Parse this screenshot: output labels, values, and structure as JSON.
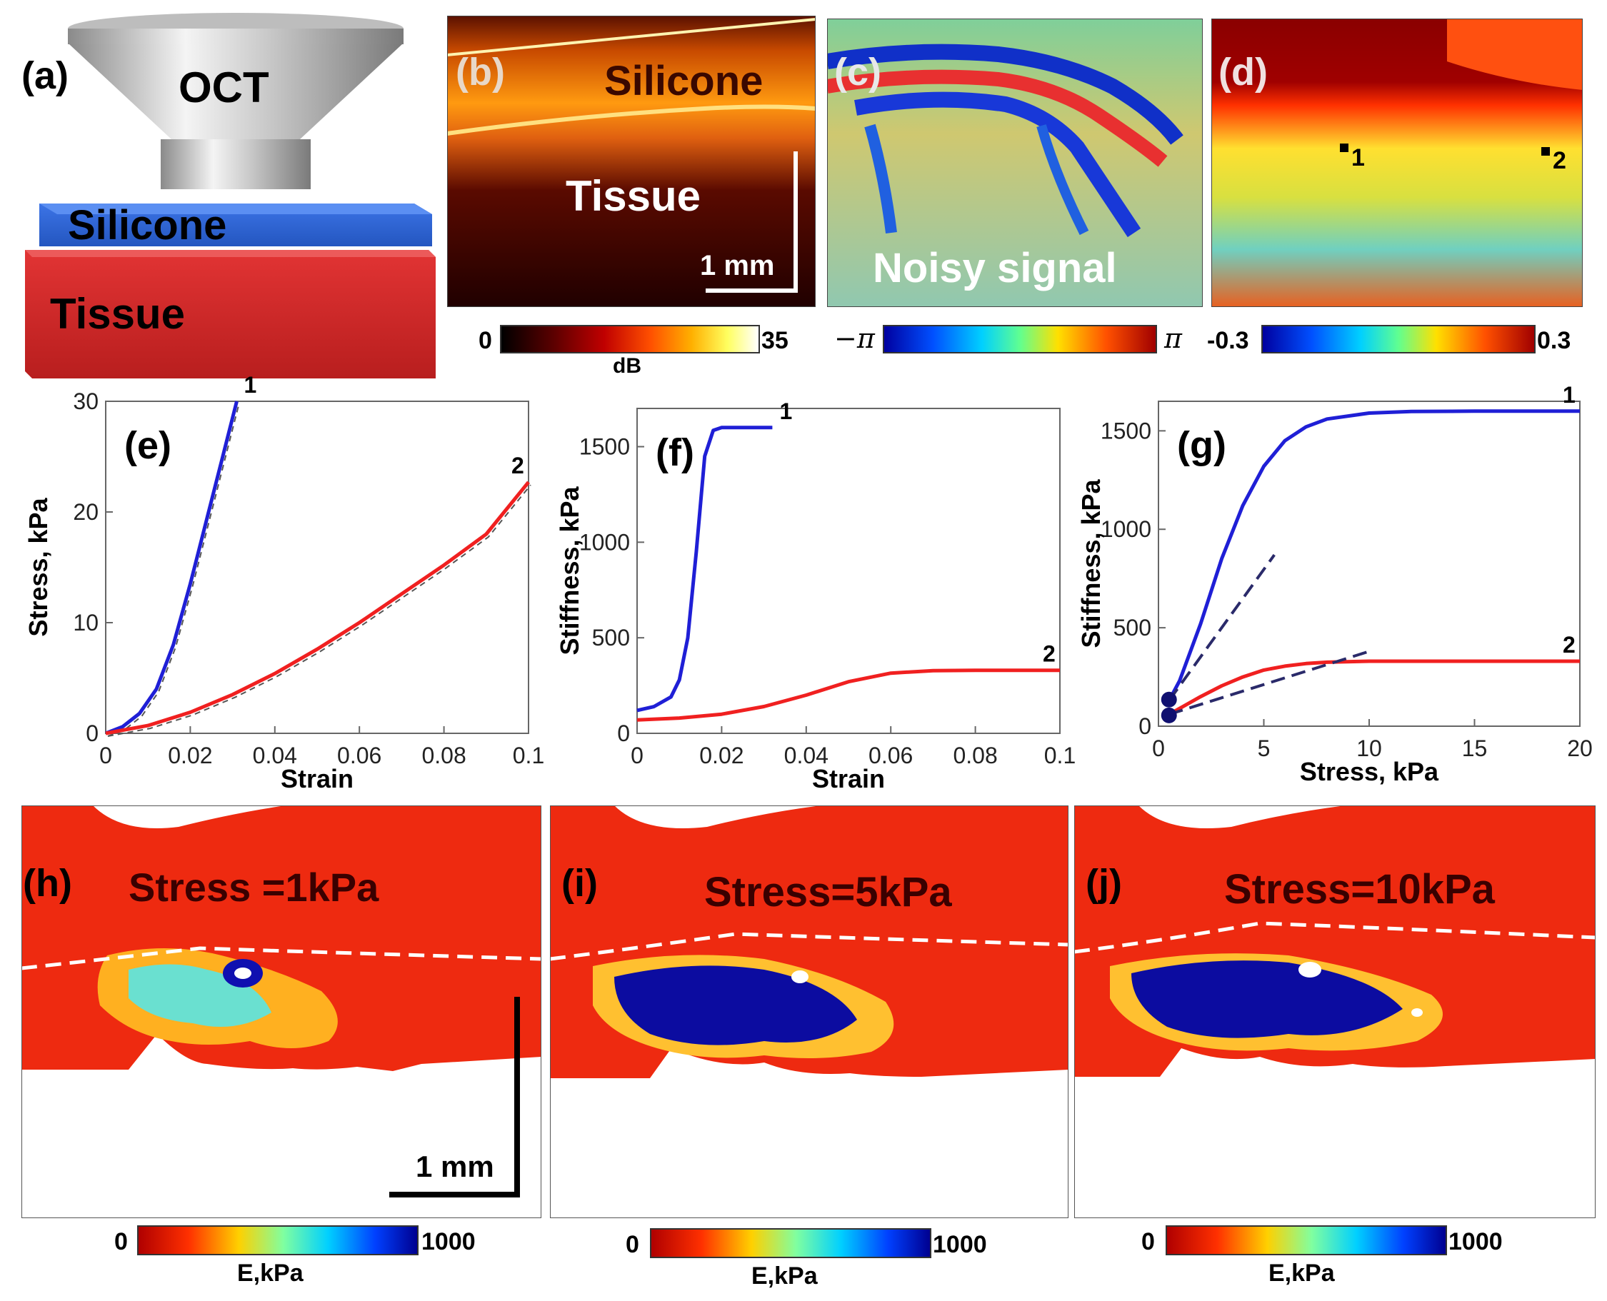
{
  "panels": {
    "a": {
      "letter": "(a)",
      "oct": "OCT",
      "silicone": "Silicone",
      "tissue": "Tissue"
    },
    "b": {
      "letter": "(b)",
      "silicone": "Silicone",
      "tissue": "Tissue",
      "scale": "1 mm",
      "colorbar": {
        "min": "0",
        "max": "35",
        "unit": "dB"
      }
    },
    "c": {
      "letter": "(c)",
      "text": "Noisy signal",
      "colorbar": {
        "min": "−π",
        "max": "π"
      }
    },
    "d": {
      "letter": "(d)",
      "point1": "1",
      "point2": "2",
      "colorbar": {
        "min": "-0.3",
        "max": "0.3"
      }
    },
    "h": {
      "letter": "(h)",
      "title": "Stress =1kPa",
      "scale": "1 mm",
      "colorbar": {
        "min": "0",
        "max": "1000",
        "unit": "E,kPa"
      }
    },
    "i": {
      "letter": "(i)",
      "title": "Stress=5kPa",
      "colorbar": {
        "min": "0",
        "max": "1000",
        "unit": "E,kPa"
      }
    },
    "j": {
      "letter": "(j)",
      "title": "Stress=10kPa",
      "colorbar": {
        "min": "0",
        "max": "1000",
        "unit": "E,kPa"
      }
    }
  },
  "colors": {
    "series1": "#1f1fd6",
    "series2": "#f02020",
    "fit": "#555555",
    "tangent": "#2a2a6a"
  },
  "chart_data": [
    {
      "id": "e",
      "letter": "(e)",
      "type": "line",
      "xlabel": "Strain",
      "ylabel": "Stress, kPa",
      "xlim": [
        0,
        0.1
      ],
      "ylim": [
        0,
        30
      ],
      "xticks": [
        "0",
        "0.02",
        "0.04",
        "0.06",
        "0.08",
        "0.1"
      ],
      "yticks": [
        "0",
        "10",
        "20",
        "30"
      ],
      "series": [
        {
          "label": "1",
          "color": "#1f1fd6",
          "x": [
            0,
            0.004,
            0.008,
            0.012,
            0.016,
            0.02,
            0.024,
            0.028,
            0.031
          ],
          "y": [
            0,
            0.6,
            1.8,
            4.0,
            8.0,
            13.5,
            19.5,
            25.5,
            30
          ]
        },
        {
          "label": "2",
          "color": "#f02020",
          "x": [
            0,
            0.01,
            0.02,
            0.03,
            0.04,
            0.05,
            0.06,
            0.07,
            0.08,
            0.09,
            0.1
          ],
          "y": [
            0,
            0.7,
            1.9,
            3.5,
            5.4,
            7.6,
            10.0,
            12.6,
            15.2,
            18.0,
            22.7
          ]
        }
      ]
    },
    {
      "id": "f",
      "letter": "(f)",
      "type": "line",
      "xlabel": "Strain",
      "ylabel": "Stiffness, kPa",
      "xlim": [
        0,
        0.1
      ],
      "ylim": [
        0,
        1700
      ],
      "xticks": [
        "0",
        "0.02",
        "0.04",
        "0.06",
        "0.08",
        "0.1"
      ],
      "yticks": [
        "0",
        "500",
        "1000",
        "1500"
      ],
      "series": [
        {
          "label": "1",
          "color": "#1f1fd6",
          "x": [
            0,
            0.004,
            0.008,
            0.01,
            0.012,
            0.014,
            0.016,
            0.018,
            0.02,
            0.025,
            0.032
          ],
          "y": [
            120,
            140,
            190,
            280,
            500,
            950,
            1450,
            1585,
            1600,
            1600,
            1600
          ]
        },
        {
          "label": "2",
          "color": "#f02020",
          "x": [
            0,
            0.01,
            0.02,
            0.03,
            0.04,
            0.05,
            0.06,
            0.07,
            0.08,
            0.1
          ],
          "y": [
            70,
            80,
            100,
            140,
            200,
            270,
            315,
            328,
            330,
            330
          ]
        }
      ]
    },
    {
      "id": "g",
      "letter": "(g)",
      "type": "line",
      "xlabel": "Stress, kPa",
      "ylabel": "Stiffness, kPa",
      "xlim": [
        0,
        20
      ],
      "ylim": [
        0,
        1650
      ],
      "xticks": [
        "0",
        "5",
        "10",
        "15",
        "20"
      ],
      "yticks": [
        "0",
        "500",
        "1000",
        "1500"
      ],
      "series": [
        {
          "label": "1",
          "color": "#1f1fd6",
          "x": [
            0.5,
            1,
            2,
            3,
            4,
            5,
            6,
            7,
            8,
            10,
            12,
            15,
            20
          ],
          "y": [
            130,
            230,
            520,
            850,
            1120,
            1320,
            1450,
            1520,
            1560,
            1590,
            1598,
            1600,
            1600
          ]
        },
        {
          "label": "2",
          "color": "#f02020",
          "x": [
            0.5,
            1,
            2,
            3,
            4,
            5,
            6,
            7,
            8,
            10,
            12,
            15,
            20
          ],
          "y": [
            60,
            90,
            150,
            205,
            250,
            285,
            305,
            318,
            325,
            330,
            330,
            330,
            330
          ]
        }
      ],
      "points": [
        {
          "x": 0.5,
          "y": 135
        },
        {
          "x": 0.5,
          "y": 55
        }
      ]
    }
  ]
}
